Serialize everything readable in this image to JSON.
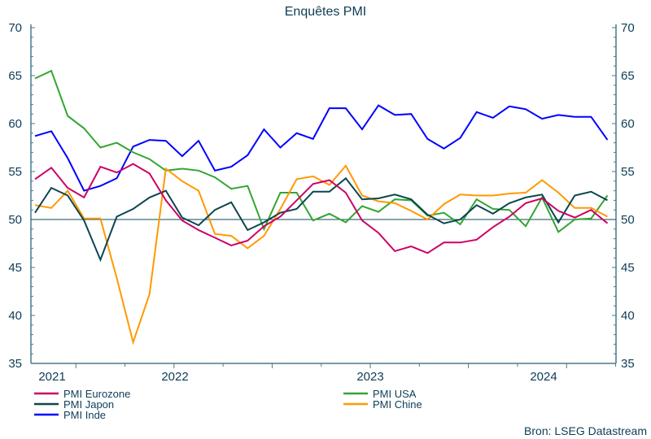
{
  "chart_data": {
    "type": "line",
    "title": "Enquêtes PMI",
    "source": "Bron: LSEG Datastream",
    "x": [
      "2021-10",
      "2021-11",
      "2021-12",
      "2022-01",
      "2022-02",
      "2022-03",
      "2022-04",
      "2022-05",
      "2022-06",
      "2022-07",
      "2022-08",
      "2022-09",
      "2022-10",
      "2022-11",
      "2022-12",
      "2023-01",
      "2023-02",
      "2023-03",
      "2023-04",
      "2023-05",
      "2023-06",
      "2023-07",
      "2023-08",
      "2023-09",
      "2023-10",
      "2023-11",
      "2023-12",
      "2024-01",
      "2024-02",
      "2024-03",
      "2024-04",
      "2024-05",
      "2024-06",
      "2024-07",
      "2024-08",
      "2024-09"
    ],
    "x_tick_labels": [
      "2021",
      "2022",
      "2023",
      "2024"
    ],
    "ylim": [
      35,
      70
    ],
    "y_ticks": [
      35,
      40,
      45,
      50,
      55,
      60,
      65,
      70
    ],
    "reference_line": 50,
    "grid": false,
    "legend_placement": "bottom",
    "series": [
      {
        "name": "PMI Eurozone",
        "color": "#cc0066",
        "values": [
          54.2,
          55.4,
          53.3,
          52.3,
          55.5,
          54.9,
          55.8,
          54.8,
          52.0,
          49.9,
          48.9,
          48.1,
          47.3,
          47.8,
          49.3,
          50.3,
          52.0,
          53.7,
          54.1,
          52.8,
          49.9,
          48.6,
          46.7,
          47.2,
          46.5,
          47.6,
          47.6,
          47.9,
          49.2,
          50.3,
          51.7,
          52.2,
          50.9,
          50.2,
          51.0,
          49.6
        ]
      },
      {
        "name": "PMI USA",
        "color": "#33a532",
        "values": [
          64.7,
          65.5,
          60.8,
          59.5,
          57.5,
          58.0,
          57.0,
          56.3,
          55.1,
          55.3,
          55.1,
          54.4,
          53.2,
          53.5,
          49.0,
          52.8,
          52.8,
          49.9,
          50.6,
          49.7,
          51.4,
          50.8,
          52.1,
          52.0,
          50.4,
          50.7,
          49.5,
          52.1,
          51.1,
          51.0,
          49.3,
          52.3,
          48.7,
          50.0,
          50.1,
          52.5
        ]
      },
      {
        "name": "PMI Japon",
        "color": "#0a4650",
        "values": [
          50.7,
          53.3,
          52.5,
          49.9,
          45.8,
          50.3,
          51.1,
          52.3,
          53.0,
          50.2,
          49.4,
          51.0,
          51.8,
          48.9,
          49.7,
          50.7,
          51.1,
          52.9,
          52.9,
          54.3,
          52.1,
          52.2,
          52.6,
          52.1,
          50.5,
          49.6,
          50.0,
          51.5,
          50.6,
          51.7,
          52.3,
          52.6,
          49.7,
          52.5,
          52.9,
          52.0
        ]
      },
      {
        "name": "PMI Chine",
        "color": "#ff9900",
        "values": [
          51.5,
          51.2,
          53.0,
          50.1,
          50.1,
          43.9,
          37.2,
          42.2,
          55.3,
          54.0,
          53.0,
          48.5,
          48.3,
          47.0,
          48.3,
          51.1,
          54.2,
          54.5,
          53.6,
          55.6,
          52.5,
          51.9,
          51.7,
          50.9,
          50.0,
          51.6,
          52.6,
          52.5,
          52.5,
          52.7,
          52.8,
          54.1,
          52.8,
          51.2,
          51.2,
          50.3
        ]
      },
      {
        "name": "PMI Inde",
        "color": "#0000ff",
        "values": [
          58.7,
          59.2,
          56.4,
          53.0,
          53.5,
          54.3,
          57.6,
          58.3,
          58.2,
          56.6,
          58.2,
          55.1,
          55.5,
          56.7,
          59.4,
          57.5,
          59.0,
          58.4,
          61.6,
          61.6,
          59.4,
          61.9,
          60.9,
          61.0,
          58.4,
          57.4,
          58.5,
          61.2,
          60.6,
          61.8,
          61.5,
          60.5,
          60.9,
          60.7,
          60.7,
          58.3
        ]
      }
    ]
  }
}
